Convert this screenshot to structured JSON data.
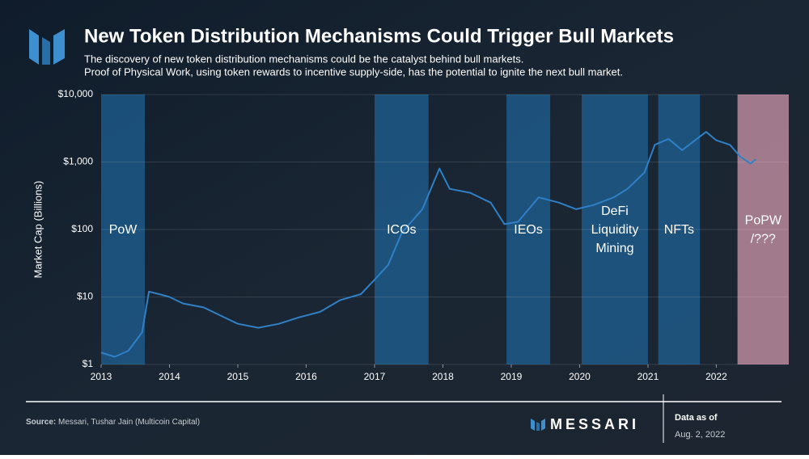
{
  "chart_data": {
    "type": "line",
    "title": "New Token Distribution Mechanisms Could Trigger Bull Markets",
    "subtitle": [
      "The discovery of new token distribution mechanisms could be the catalyst behind bull markets.",
      "Proof of Physical Work, using token rewards to incentive supply-side, has the potential to ignite the next bull market."
    ],
    "y_label": "Market Cap (Billions)",
    "log_y": true,
    "grid": true,
    "color": "#2f80c6",
    "x": [
      2013.0,
      2013.2,
      2013.4,
      2013.6,
      2013.7,
      2013.85,
      2014.0,
      2014.2,
      2014.5,
      2014.8,
      2015.0,
      2015.3,
      2015.6,
      2015.9,
      2016.2,
      2016.5,
      2016.8,
      2017.0,
      2017.2,
      2017.4,
      2017.7,
      2017.95,
      2018.1,
      2018.4,
      2018.7,
      2018.9,
      2019.1,
      2019.4,
      2019.7,
      2019.95,
      2020.2,
      2020.5,
      2020.7,
      2020.95,
      2021.1,
      2021.3,
      2021.5,
      2021.85,
      2022.0,
      2022.2,
      2022.35,
      2022.5,
      2022.58
    ],
    "values": [
      1.5,
      1.3,
      1.6,
      3,
      12,
      11,
      10,
      8,
      7,
      5,
      4,
      3.5,
      4,
      5,
      6,
      9,
      11,
      18,
      30,
      90,
      200,
      800,
      400,
      350,
      250,
      120,
      130,
      300,
      250,
      200,
      230,
      300,
      400,
      700,
      1800,
      2200,
      1500,
      2800,
      2100,
      1800,
      1200,
      950,
      1100
    ],
    "xlim": [
      2013,
      2023.06
    ],
    "xticks": [
      2013,
      2014,
      2015,
      2016,
      2017,
      2018,
      2019,
      2020,
      2021,
      2022
    ],
    "ylim": [
      1,
      10000
    ],
    "yticks": [
      {
        "value": 1,
        "label": "$1"
      },
      {
        "value": 10,
        "label": "$10"
      },
      {
        "value": 100,
        "label": "$100"
      },
      {
        "value": 1000,
        "label": "$1,000"
      },
      {
        "value": 10000,
        "label": "$10,000"
      }
    ],
    "periods": [
      {
        "label": [
          "PoW"
        ],
        "start": 2013.0,
        "end": 2013.64,
        "color": "#1f6fae"
      },
      {
        "label": [
          "ICOs"
        ],
        "start": 2017.0,
        "end": 2017.79,
        "color": "#1f6fae"
      },
      {
        "label": [
          "IEOs"
        ],
        "start": 2018.93,
        "end": 2019.57,
        "color": "#1f6fae"
      },
      {
        "label": [
          "DeFi",
          "Liquidity",
          "Mining"
        ],
        "start": 2020.03,
        "end": 2021.0,
        "color": "#1f6fae"
      },
      {
        "label": [
          "NFTs"
        ],
        "start": 2021.15,
        "end": 2021.76,
        "color": "#1f6fae"
      },
      {
        "label": [
          "PoPW",
          "/???"
        ],
        "start": 2022.31,
        "end": 2023.06,
        "color": "#b98a9c"
      }
    ],
    "source_label": "Source:",
    "source": "Messari, Tushar Jain (Multicoin Capital)"
  },
  "footer": {
    "brand": "MESSARI",
    "date_label": "Data as of",
    "date": "Aug. 2, 2022"
  }
}
